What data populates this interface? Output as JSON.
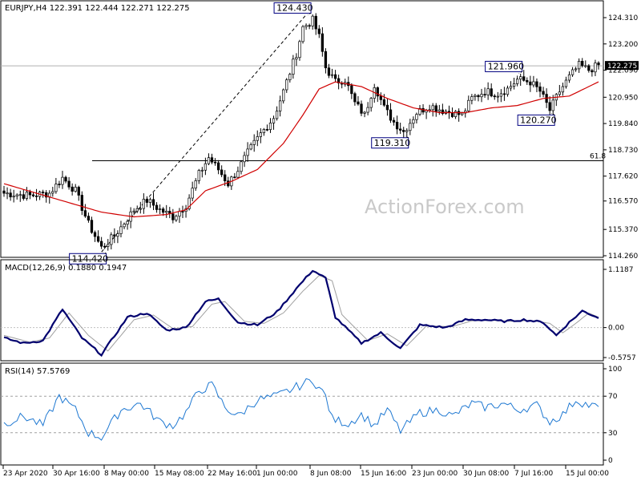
{
  "chart_data": {
    "type": "candlestick",
    "symbol": "EURJPY,H4",
    "title": "EURJPY,H4  122.391 122.444 122.271 122.275",
    "watermark": "ActionForex.com",
    "x_labels": [
      "23 Apr 2020",
      "30 Apr 16:00",
      "8 May 00:00",
      "15 May 08:00",
      "22 May 16:00",
      "1 Jun 00:00",
      "8 Jun 08:00",
      "15 Jun 16:00",
      "23 Jun 00:00",
      "30 Jun 08:00",
      "7 Jul 16:00",
      "15 Jul 00:00"
    ],
    "price_panel": {
      "ylim": [
        114.26,
        124.31
      ],
      "yticks": [
        "124.310",
        "123.200",
        "122.090",
        "120.950",
        "119.840",
        "118.730",
        "117.620",
        "116.570",
        "115.370",
        "114.260"
      ],
      "current_price": "122.275",
      "fib_level": {
        "label": "61.8",
        "price": 118.27
      },
      "annotations": [
        {
          "label": "124.430",
          "price": 124.43
        },
        {
          "label": "114.420",
          "price": 114.42
        },
        {
          "label": "119.310",
          "price": 119.31
        },
        {
          "label": "121.960",
          "price": 121.96
        },
        {
          "label": "120.270",
          "price": 120.27
        }
      ],
      "anchors": [
        [
          0,
          116.9
        ],
        [
          8,
          116.8
        ],
        [
          14,
          116.9
        ],
        [
          18,
          117.55
        ],
        [
          22,
          117.0
        ],
        [
          26,
          115.6
        ],
        [
          30,
          114.6
        ],
        [
          34,
          115.1
        ],
        [
          40,
          116.2
        ],
        [
          44,
          116.6
        ],
        [
          48,
          116.2
        ],
        [
          52,
          115.9
        ],
        [
          56,
          116.4
        ],
        [
          60,
          117.7
        ],
        [
          63,
          118.4
        ],
        [
          66,
          117.9
        ],
        [
          69,
          117.3
        ],
        [
          72,
          117.9
        ],
        [
          75,
          118.6
        ],
        [
          79,
          119.4
        ],
        [
          83,
          120.1
        ],
        [
          86,
          121.2
        ],
        [
          90,
          122.8
        ],
        [
          92,
          123.9
        ],
        [
          95,
          124.2
        ],
        [
          97,
          123.5
        ],
        [
          99,
          122.2
        ],
        [
          102,
          121.6
        ],
        [
          105,
          121.7
        ],
        [
          108,
          120.7
        ],
        [
          111,
          120.2
        ],
        [
          114,
          121.5
        ],
        [
          117,
          120.5
        ],
        [
          120,
          119.9
        ],
        [
          123,
          119.5
        ],
        [
          127,
          120.3
        ],
        [
          131,
          120.6
        ],
        [
          135,
          120.4
        ],
        [
          138,
          120.3
        ],
        [
          141,
          120.2
        ],
        [
          144,
          120.9
        ],
        [
          148,
          121.2
        ],
        [
          152,
          121.1
        ],
        [
          155,
          121.3
        ],
        [
          158,
          121.7
        ],
        [
          162,
          121.6
        ],
        [
          165,
          121.2
        ],
        [
          168,
          120.4
        ],
        [
          171,
          121.2
        ],
        [
          174,
          121.8
        ],
        [
          177,
          122.3
        ],
        [
          180,
          122.1
        ],
        [
          183,
          122.3
        ]
      ],
      "ma_anchors": [
        [
          0,
          117.3
        ],
        [
          10,
          116.9
        ],
        [
          20,
          116.5
        ],
        [
          30,
          116.1
        ],
        [
          40,
          115.9
        ],
        [
          50,
          116.0
        ],
        [
          56,
          116.2
        ],
        [
          62,
          117.0
        ],
        [
          70,
          117.4
        ],
        [
          78,
          117.9
        ],
        [
          86,
          119.0
        ],
        [
          92,
          120.2
        ],
        [
          97,
          121.3
        ],
        [
          102,
          121.6
        ],
        [
          110,
          121.4
        ],
        [
          118,
          120.9
        ],
        [
          126,
          120.5
        ],
        [
          134,
          120.3
        ],
        [
          142,
          120.3
        ],
        [
          150,
          120.5
        ],
        [
          158,
          120.6
        ],
        [
          166,
          120.9
        ],
        [
          174,
          121.0
        ],
        [
          183,
          121.6
        ]
      ]
    },
    "macd_panel": {
      "title": "MACD(12,26,9) 0.1880 0.1947",
      "ylim": [
        -0.5757,
        1.1187
      ],
      "yticks": [
        "1.1187",
        "0.00",
        "-0.5757"
      ],
      "anchors": [
        [
          0,
          -0.2
        ],
        [
          6,
          -0.3
        ],
        [
          12,
          -0.25
        ],
        [
          18,
          0.35
        ],
        [
          24,
          -0.2
        ],
        [
          30,
          -0.52
        ],
        [
          38,
          0.2
        ],
        [
          44,
          0.28
        ],
        [
          50,
          -0.05
        ],
        [
          56,
          0.0
        ],
        [
          62,
          0.5
        ],
        [
          66,
          0.55
        ],
        [
          72,
          0.1
        ],
        [
          78,
          0.05
        ],
        [
          84,
          0.3
        ],
        [
          90,
          0.75
        ],
        [
          95,
          1.1
        ],
        [
          99,
          0.95
        ],
        [
          102,
          0.2
        ],
        [
          110,
          -0.3
        ],
        [
          116,
          -0.1
        ],
        [
          122,
          -0.4
        ],
        [
          128,
          0.05
        ],
        [
          136,
          0.0
        ],
        [
          142,
          0.15
        ],
        [
          148,
          0.15
        ],
        [
          154,
          0.12
        ],
        [
          160,
          0.15
        ],
        [
          166,
          0.1
        ],
        [
          170,
          -0.15
        ],
        [
          174,
          0.1
        ],
        [
          178,
          0.32
        ],
        [
          183,
          0.19
        ]
      ],
      "signal_anchors": [
        [
          0,
          -0.15
        ],
        [
          8,
          -0.28
        ],
        [
          14,
          -0.2
        ],
        [
          20,
          0.28
        ],
        [
          26,
          -0.15
        ],
        [
          32,
          -0.45
        ],
        [
          40,
          0.15
        ],
        [
          46,
          0.24
        ],
        [
          52,
          -0.02
        ],
        [
          58,
          0.02
        ],
        [
          64,
          0.45
        ],
        [
          68,
          0.5
        ],
        [
          74,
          0.12
        ],
        [
          80,
          0.08
        ],
        [
          86,
          0.28
        ],
        [
          92,
          0.7
        ],
        [
          97,
          1.0
        ],
        [
          101,
          0.9
        ],
        [
          104,
          0.25
        ],
        [
          112,
          -0.25
        ],
        [
          118,
          -0.12
        ],
        [
          124,
          -0.35
        ],
        [
          130,
          0.03
        ],
        [
          138,
          0.02
        ],
        [
          144,
          0.13
        ],
        [
          150,
          0.14
        ],
        [
          156,
          0.12
        ],
        [
          162,
          0.14
        ],
        [
          168,
          0.08
        ],
        [
          172,
          -0.1
        ],
        [
          176,
          0.08
        ],
        [
          180,
          0.28
        ],
        [
          183,
          0.2
        ]
      ]
    },
    "rsi_panel": {
      "title": "RSI(14) 57.5769",
      "ylim": [
        0,
        100
      ],
      "yticks": [
        "100",
        "70",
        "30",
        "0"
      ],
      "levels": [
        70,
        30
      ],
      "anchors": [
        [
          0,
          40
        ],
        [
          6,
          48
        ],
        [
          12,
          38
        ],
        [
          17,
          70
        ],
        [
          22,
          55
        ],
        [
          26,
          30
        ],
        [
          30,
          25
        ],
        [
          36,
          55
        ],
        [
          42,
          62
        ],
        [
          48,
          42
        ],
        [
          52,
          38
        ],
        [
          56,
          52
        ],
        [
          60,
          76
        ],
        [
          64,
          82
        ],
        [
          68,
          58
        ],
        [
          72,
          48
        ],
        [
          78,
          66
        ],
        [
          84,
          70
        ],
        [
          90,
          80
        ],
        [
          95,
          88
        ],
        [
          99,
          70
        ],
        [
          101,
          45
        ],
        [
          106,
          40
        ],
        [
          110,
          50
        ],
        [
          114,
          38
        ],
        [
          118,
          55
        ],
        [
          122,
          32
        ],
        [
          128,
          52
        ],
        [
          134,
          55
        ],
        [
          138,
          48
        ],
        [
          144,
          62
        ],
        [
          148,
          58
        ],
        [
          154,
          62
        ],
        [
          158,
          55
        ],
        [
          164,
          60
        ],
        [
          168,
          42
        ],
        [
          172,
          50
        ],
        [
          176,
          66
        ],
        [
          180,
          60
        ],
        [
          183,
          58
        ]
      ]
    }
  }
}
